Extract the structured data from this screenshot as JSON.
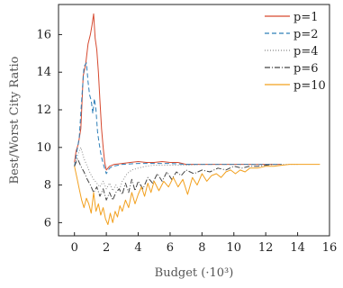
{
  "chart_data": {
    "type": "line",
    "title": "",
    "xlabel": "Budget (·10³)",
    "ylabel": "Best/Worst City Ratio",
    "xlim": [
      -1,
      16
    ],
    "ylim": [
      5.3,
      17.6
    ],
    "xticks": [
      0,
      2,
      4,
      6,
      8,
      10,
      12,
      14,
      16
    ],
    "yticks": [
      6,
      8,
      10,
      12,
      14,
      16
    ],
    "grid": false,
    "legend_position": "top-right",
    "series": [
      {
        "name": "p=1",
        "color": "#d6492f",
        "dash": "solid",
        "points": [
          [
            0,
            9.2
          ],
          [
            0.1,
            9.8
          ],
          [
            0.25,
            10.2
          ],
          [
            0.4,
            11.0
          ],
          [
            0.55,
            13.8
          ],
          [
            0.7,
            14.4
          ],
          [
            0.85,
            15.5
          ],
          [
            1.0,
            16.0
          ],
          [
            1.1,
            16.5
          ],
          [
            1.2,
            17.1
          ],
          [
            1.3,
            15.8
          ],
          [
            1.4,
            15.2
          ],
          [
            1.5,
            14.0
          ],
          [
            1.6,
            12.5
          ],
          [
            1.7,
            11.0
          ],
          [
            1.8,
            10.0
          ],
          [
            1.9,
            9.2
          ],
          [
            2.0,
            8.8
          ],
          [
            2.2,
            9.0
          ],
          [
            2.5,
            9.1
          ],
          [
            3,
            9.15
          ],
          [
            3.5,
            9.2
          ],
          [
            4,
            9.25
          ],
          [
            4.5,
            9.2
          ],
          [
            5,
            9.2
          ],
          [
            5.5,
            9.25
          ],
          [
            6,
            9.2
          ],
          [
            6.5,
            9.2
          ],
          [
            7,
            9.1
          ],
          [
            7.5,
            9.1
          ],
          [
            8,
            9.1
          ],
          [
            9,
            9.1
          ],
          [
            10,
            9.1
          ],
          [
            11,
            9.1
          ],
          [
            12,
            9.1
          ],
          [
            13,
            9.1
          ]
        ]
      },
      {
        "name": "p=2",
        "color": "#2e7fb8",
        "dash": "5,3",
        "points": [
          [
            0,
            9.0
          ],
          [
            0.15,
            9.8
          ],
          [
            0.3,
            10.5
          ],
          [
            0.45,
            12.5
          ],
          [
            0.6,
            14.3
          ],
          [
            0.75,
            14.5
          ],
          [
            0.85,
            13.5
          ],
          [
            0.95,
            12.8
          ],
          [
            1.05,
            12.5
          ],
          [
            1.15,
            11.8
          ],
          [
            1.25,
            12.6
          ],
          [
            1.35,
            12.0
          ],
          [
            1.45,
            10.8
          ],
          [
            1.55,
            10.2
          ],
          [
            1.65,
            9.7
          ],
          [
            1.75,
            9.3
          ],
          [
            1.85,
            9.0
          ],
          [
            2.0,
            8.6
          ],
          [
            2.2,
            8.9
          ],
          [
            2.4,
            9.0
          ],
          [
            3,
            9.1
          ],
          [
            4,
            9.15
          ],
          [
            5,
            9.15
          ],
          [
            6,
            9.15
          ],
          [
            7,
            9.1
          ],
          [
            8,
            9.1
          ],
          [
            9,
            9.1
          ],
          [
            10,
            9.1
          ],
          [
            11,
            9.1
          ],
          [
            12,
            9.1
          ],
          [
            13,
            9.1
          ]
        ]
      },
      {
        "name": "p=4",
        "color": "#888888",
        "dash": "1,2",
        "points": [
          [
            0,
            9.0
          ],
          [
            0.2,
            9.6
          ],
          [
            0.4,
            10.0
          ],
          [
            0.6,
            9.4
          ],
          [
            0.8,
            9.0
          ],
          [
            1.0,
            8.6
          ],
          [
            1.2,
            8.3
          ],
          [
            1.4,
            8.1
          ],
          [
            1.6,
            7.9
          ],
          [
            1.8,
            8.2
          ],
          [
            2.0,
            7.8
          ],
          [
            2.2,
            8.1
          ],
          [
            2.4,
            7.7
          ],
          [
            2.6,
            8.0
          ],
          [
            2.8,
            7.7
          ],
          [
            3.0,
            8.2
          ],
          [
            3.3,
            8.6
          ],
          [
            3.6,
            8.8
          ],
          [
            4,
            8.9
          ],
          [
            4.5,
            9.0
          ],
          [
            5,
            9.05
          ],
          [
            6,
            9.05
          ],
          [
            7,
            9.05
          ],
          [
            8,
            9.1
          ],
          [
            9,
            9.1
          ],
          [
            10,
            9.1
          ],
          [
            11,
            9.1
          ],
          [
            12,
            9.1
          ],
          [
            13,
            9.1
          ],
          [
            14,
            9.1
          ]
        ]
      },
      {
        "name": "p=6",
        "color": "#444444",
        "dash": "6,2,1,2",
        "points": [
          [
            0,
            9.0
          ],
          [
            0.2,
            9.4
          ],
          [
            0.4,
            9.0
          ],
          [
            0.6,
            8.7
          ],
          [
            0.8,
            8.3
          ],
          [
            1.0,
            8.0
          ],
          [
            1.2,
            7.6
          ],
          [
            1.4,
            7.9
          ],
          [
            1.6,
            7.4
          ],
          [
            1.8,
            7.8
          ],
          [
            2.0,
            7.2
          ],
          [
            2.2,
            7.6
          ],
          [
            2.4,
            7.2
          ],
          [
            2.6,
            7.6
          ],
          [
            2.8,
            7.8
          ],
          [
            3.0,
            7.5
          ],
          [
            3.2,
            8.1
          ],
          [
            3.4,
            7.6
          ],
          [
            3.6,
            8.3
          ],
          [
            3.8,
            7.7
          ],
          [
            4.0,
            8.2
          ],
          [
            4.3,
            7.8
          ],
          [
            4.6,
            8.4
          ],
          [
            4.9,
            8.1
          ],
          [
            5.2,
            8.6
          ],
          [
            5.5,
            8.2
          ],
          [
            5.8,
            8.7
          ],
          [
            6.1,
            8.3
          ],
          [
            6.4,
            8.7
          ],
          [
            6.7,
            8.5
          ],
          [
            7,
            8.8
          ],
          [
            7.5,
            8.6
          ],
          [
            8,
            8.8
          ],
          [
            8.5,
            8.7
          ],
          [
            9,
            8.9
          ],
          [
            9.5,
            8.8
          ],
          [
            10,
            9.0
          ],
          [
            10.5,
            8.9
          ],
          [
            11,
            9.0
          ],
          [
            11.5,
            9.0
          ],
          [
            12,
            9.05
          ],
          [
            12.5,
            9.1
          ]
        ]
      },
      {
        "name": "p=10",
        "color": "#f2a01e",
        "dash": "solid",
        "points": [
          [
            0,
            9.0
          ],
          [
            0.15,
            8.4
          ],
          [
            0.3,
            7.8
          ],
          [
            0.45,
            7.2
          ],
          [
            0.6,
            6.8
          ],
          [
            0.75,
            7.3
          ],
          [
            0.9,
            7.0
          ],
          [
            1.05,
            6.5
          ],
          [
            1.2,
            7.6
          ],
          [
            1.35,
            6.6
          ],
          [
            1.5,
            7.0
          ],
          [
            1.65,
            6.4
          ],
          [
            1.8,
            6.8
          ],
          [
            1.95,
            6.2
          ],
          [
            2.1,
            5.9
          ],
          [
            2.25,
            6.5
          ],
          [
            2.4,
            6.0
          ],
          [
            2.55,
            6.6
          ],
          [
            2.7,
            6.3
          ],
          [
            2.85,
            6.9
          ],
          [
            3.0,
            6.6
          ],
          [
            3.2,
            7.2
          ],
          [
            3.4,
            6.8
          ],
          [
            3.6,
            7.6
          ],
          [
            3.8,
            7.0
          ],
          [
            4.0,
            7.5
          ],
          [
            4.2,
            7.9
          ],
          [
            4.4,
            7.4
          ],
          [
            4.6,
            8.1
          ],
          [
            4.8,
            7.6
          ],
          [
            5.0,
            8.2
          ],
          [
            5.3,
            7.7
          ],
          [
            5.6,
            8.2
          ],
          [
            5.9,
            7.9
          ],
          [
            6.2,
            8.4
          ],
          [
            6.5,
            7.9
          ],
          [
            6.8,
            8.3
          ],
          [
            7.1,
            7.5
          ],
          [
            7.4,
            8.4
          ],
          [
            7.7,
            8.0
          ],
          [
            8.0,
            8.6
          ],
          [
            8.3,
            8.2
          ],
          [
            8.6,
            8.5
          ],
          [
            8.9,
            8.6
          ],
          [
            9.2,
            8.4
          ],
          [
            9.5,
            8.7
          ],
          [
            9.8,
            8.8
          ],
          [
            10.1,
            8.6
          ],
          [
            10.4,
            8.8
          ],
          [
            10.7,
            8.7
          ],
          [
            11,
            8.9
          ],
          [
            11.5,
            8.9
          ],
          [
            12,
            9.0
          ],
          [
            12.5,
            9.0
          ],
          [
            13,
            9.05
          ],
          [
            13.5,
            9.1
          ],
          [
            14,
            9.1
          ],
          [
            14.5,
            9.1
          ],
          [
            15,
            9.1
          ],
          [
            15.4,
            9.1
          ]
        ]
      }
    ]
  }
}
